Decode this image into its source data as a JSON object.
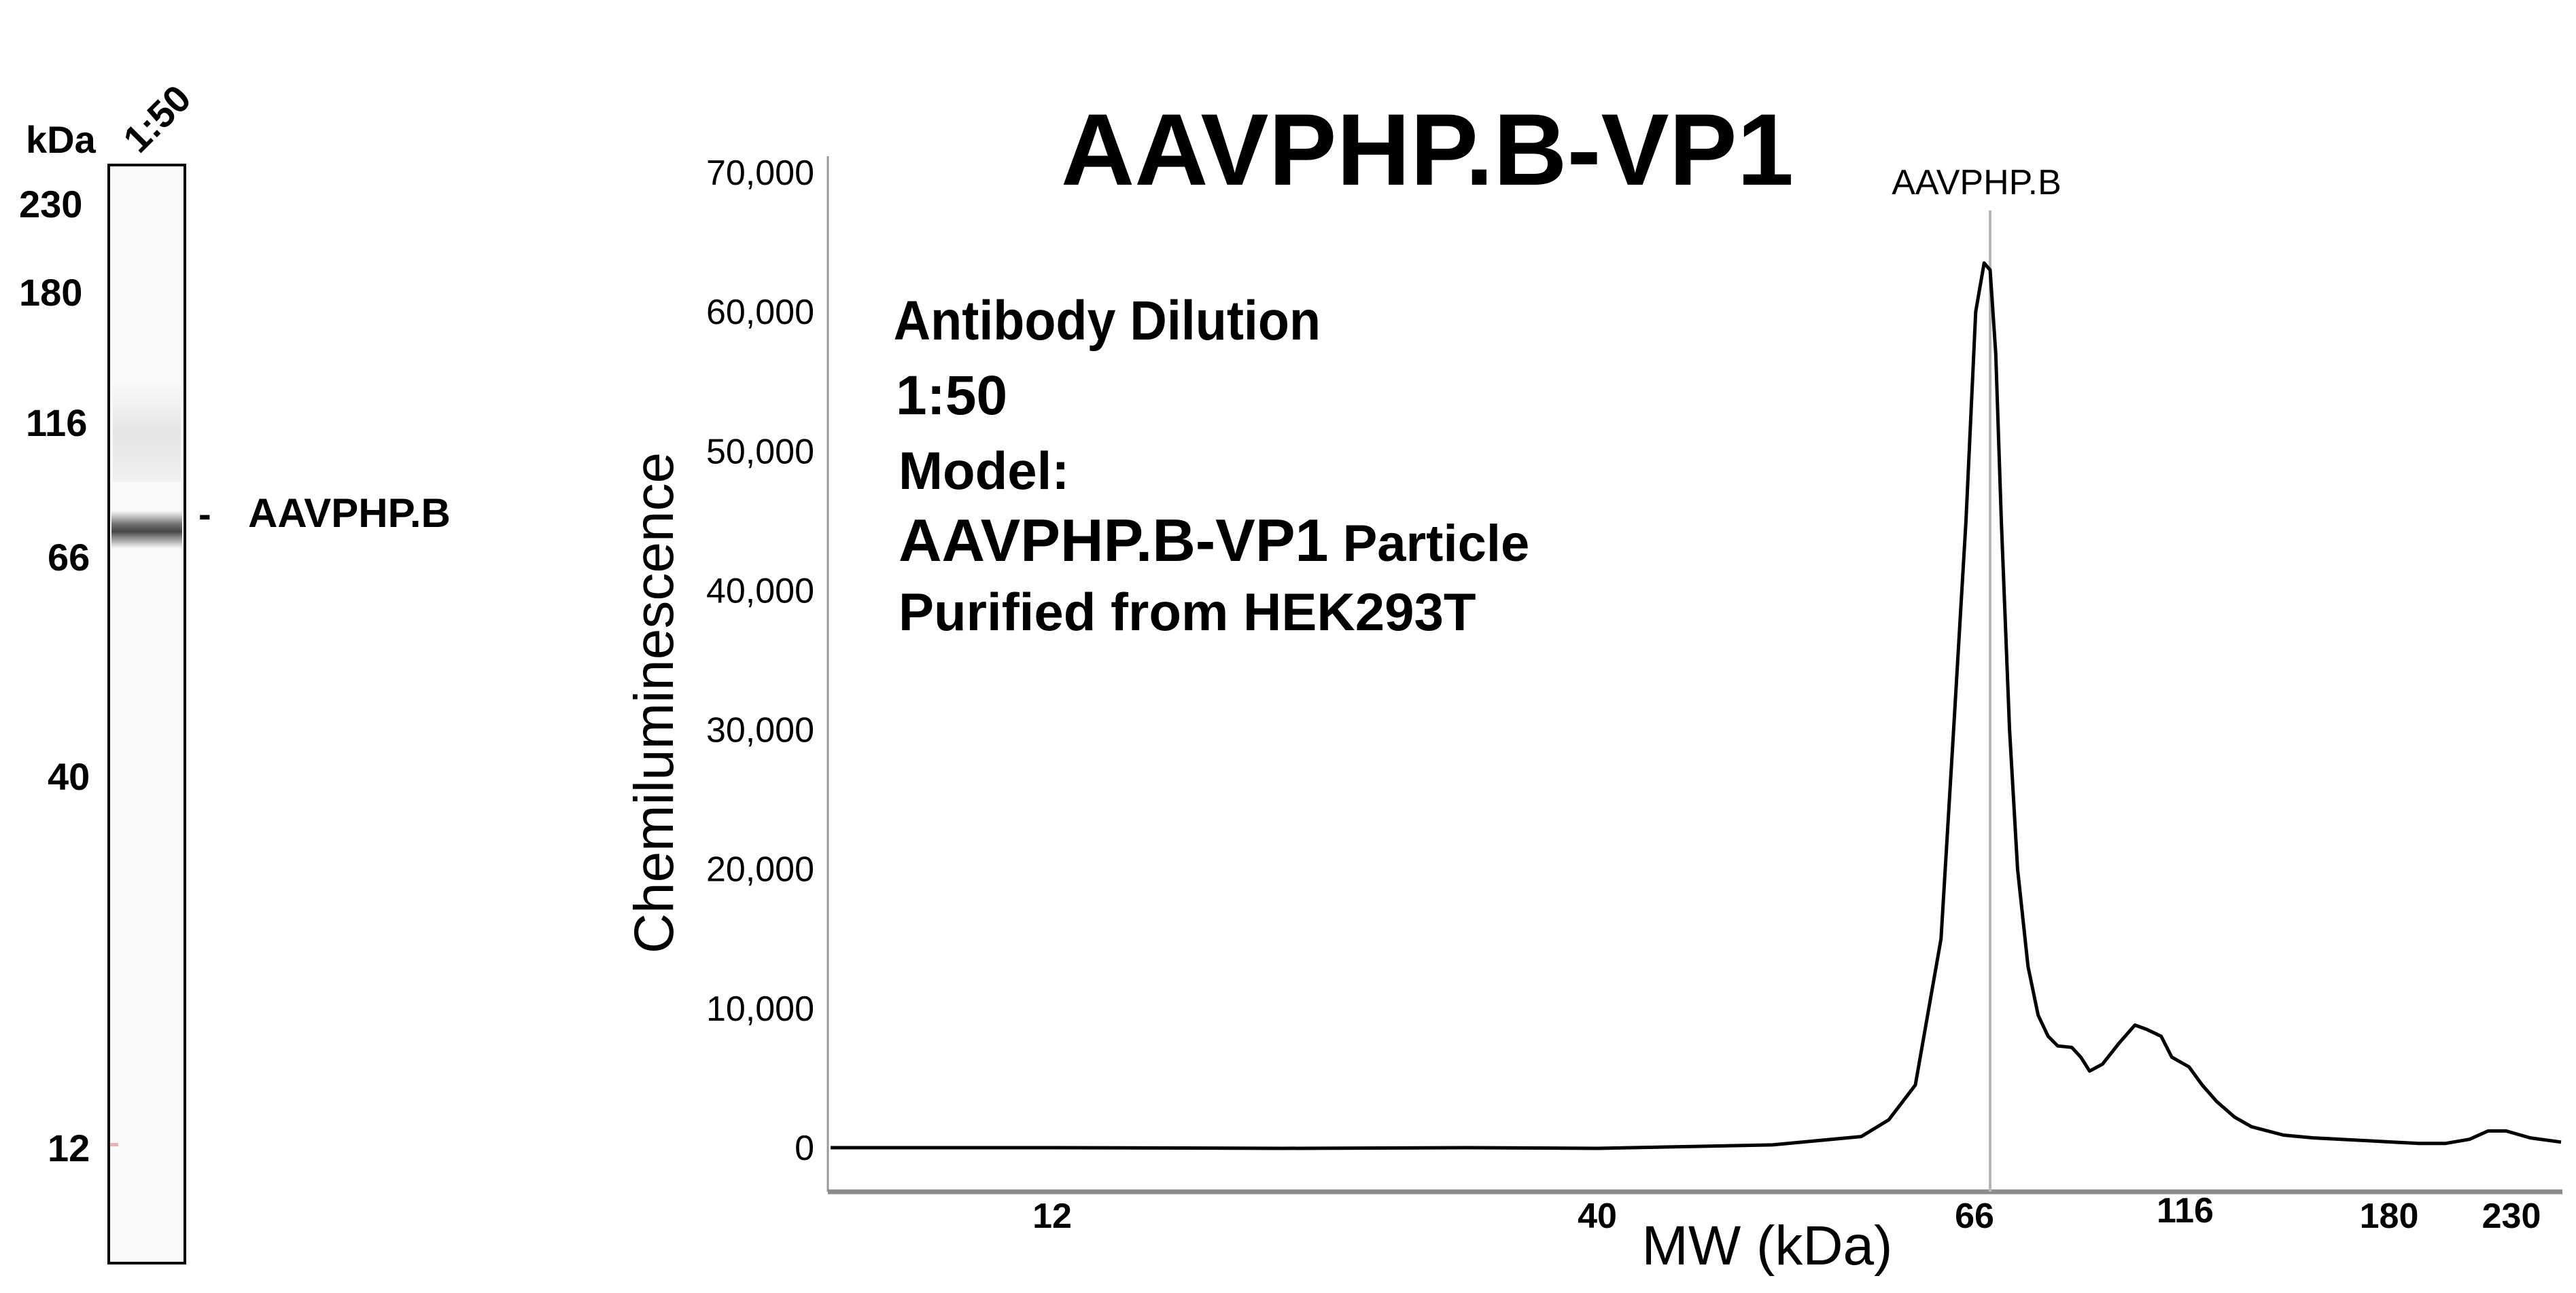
{
  "gel": {
    "unit_label": "kDa",
    "lane_label": "1:50",
    "markers": [
      "230",
      "180",
      "116",
      "66",
      "40",
      "12"
    ],
    "band_dash": "-",
    "band_label": "AAVPHP.B"
  },
  "annotation": {
    "line1": "Antibody Dilution",
    "line2": "1:50",
    "line3": "Model:",
    "line4_bold": "AAVPHP.B-VP1",
    "line4_rest": " Particle",
    "line5": "Purified from HEK293T"
  },
  "chart_data": {
    "type": "line",
    "title": "AAVPHP.B-VP1",
    "xlabel": "MW (kDa)",
    "ylabel": "Chemiluminescence",
    "ylim": [
      0,
      70000
    ],
    "yticks": [
      0,
      10000,
      20000,
      30000,
      40000,
      50000,
      60000,
      70000
    ],
    "ytick_labels": [
      "0",
      "10,000",
      "20,000",
      "30,000",
      "40,000",
      "50,000",
      "60,000",
      "70,000"
    ],
    "xtick_labels": [
      "12",
      "40",
      "66",
      "116",
      "180",
      "230"
    ],
    "peak_label": "AAVPHP.B",
    "peak_kda": 66,
    "grid": false,
    "series": [
      {
        "color": "#000000",
        "points": [
          [
            9,
            0
          ],
          [
            12,
            0
          ],
          [
            20,
            -50
          ],
          [
            30,
            0
          ],
          [
            40,
            -50
          ],
          [
            50,
            200
          ],
          [
            56,
            800
          ],
          [
            58,
            2000
          ],
          [
            60,
            4500
          ],
          [
            62,
            15000
          ],
          [
            63,
            30000
          ],
          [
            64,
            45000
          ],
          [
            64.8,
            60000
          ],
          [
            65.5,
            63500
          ],
          [
            66,
            63000
          ],
          [
            67,
            57000
          ],
          [
            68,
            45000
          ],
          [
            69.5,
            30000
          ],
          [
            71,
            20000
          ],
          [
            73,
            13000
          ],
          [
            75,
            9500
          ],
          [
            77,
            8000
          ],
          [
            79,
            7300
          ],
          [
            82,
            7200
          ],
          [
            84,
            6500
          ],
          [
            86,
            5500
          ],
          [
            89,
            6000
          ],
          [
            93,
            7500
          ],
          [
            97,
            8800
          ],
          [
            100,
            8500
          ],
          [
            104,
            8000
          ],
          [
            107,
            6500
          ],
          [
            112,
            5800
          ],
          [
            116,
            4500
          ],
          [
            120,
            3300
          ],
          [
            125,
            2200
          ],
          [
            130,
            1500
          ],
          [
            140,
            900
          ],
          [
            150,
            700
          ],
          [
            160,
            600
          ],
          [
            170,
            500
          ],
          [
            180,
            400
          ],
          [
            190,
            300
          ],
          [
            200,
            300
          ],
          [
            210,
            600
          ],
          [
            218,
            1200
          ],
          [
            226,
            1200
          ],
          [
            232,
            700
          ],
          [
            236,
            400
          ]
        ]
      }
    ]
  }
}
